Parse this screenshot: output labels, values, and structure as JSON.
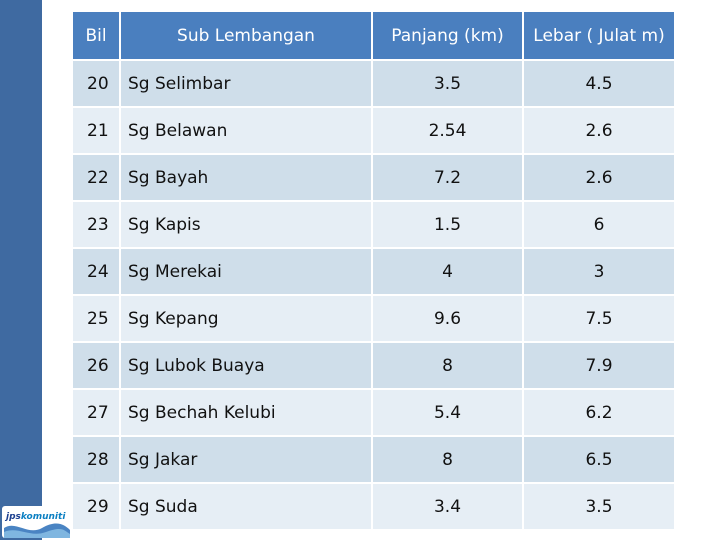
{
  "table": {
    "headers": {
      "bil": "Bil",
      "sub": "Sub Lembangan",
      "panjang": "Panjang (km)",
      "lebar": "Lebar ( Julat m)"
    },
    "rows": [
      {
        "bil": "20",
        "name": "Sg Selimbar",
        "panjang": "3.5",
        "lebar": "4.5"
      },
      {
        "bil": "21",
        "name": "Sg Belawan",
        "panjang": "2.54",
        "lebar": "2.6"
      },
      {
        "bil": "22",
        "name": "Sg Bayah",
        "panjang": "7.2",
        "lebar": "2.6"
      },
      {
        "bil": "23",
        "name": "Sg Kapis",
        "panjang": "1.5",
        "lebar": "6"
      },
      {
        "bil": "24",
        "name": "Sg Merekai",
        "panjang": "4",
        "lebar": "3"
      },
      {
        "bil": "25",
        "name": "Sg Kepang",
        "panjang": "9.6",
        "lebar": "7.5"
      },
      {
        "bil": "26",
        "name": "Sg Lubok Buaya",
        "panjang": "8",
        "lebar": "7.9"
      },
      {
        "bil": "27",
        "name": "Sg Bechah Kelubi",
        "panjang": "5.4",
        "lebar": "6.2"
      },
      {
        "bil": "28",
        "name": "Sg Jakar",
        "panjang": "8",
        "lebar": "6.5"
      },
      {
        "bil": "29",
        "name": "Sg Suda",
        "panjang": "3.4",
        "lebar": "3.5"
      }
    ]
  },
  "logo": {
    "part1": "jps",
    "part2": "komuniti"
  },
  "colors": {
    "header": "#4a7fbf",
    "row_odd": "#cfdeea",
    "row_even": "#e6eef5",
    "side_bar": "#3f6aa1"
  }
}
